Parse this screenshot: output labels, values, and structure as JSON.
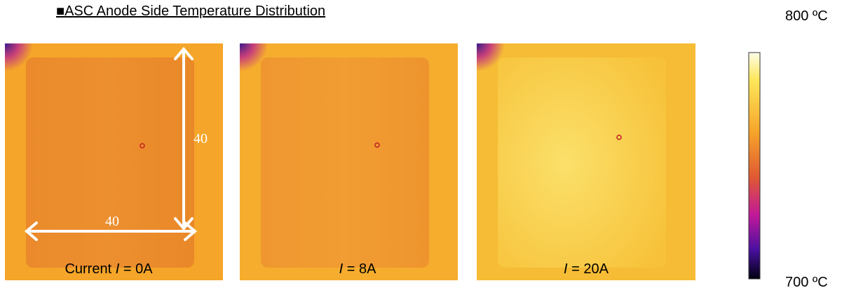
{
  "header": {
    "title": "■ASC Anode Side Temperature Distribution"
  },
  "panels": [
    {
      "prefix": "Current",
      "symbol": "I",
      "suffix": "= 0A"
    },
    {
      "symbol": "I",
      "suffix": "= 8A"
    },
    {
      "symbol": "I",
      "suffix": "= 20A"
    }
  ],
  "dimensions": {
    "height": "40",
    "width": "40"
  },
  "colorbar": {
    "max_label": "800 ºC",
    "min_label": "700 ºC"
  }
}
